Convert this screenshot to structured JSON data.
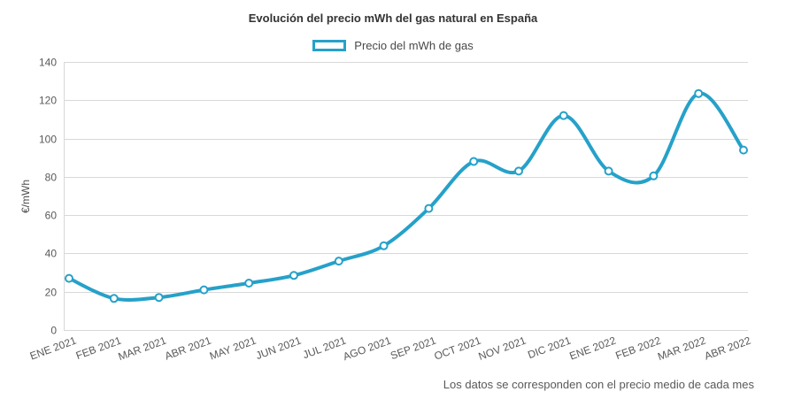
{
  "page": {
    "footer_note": "Los datos se corresponden con el precio medio de cada mes"
  },
  "legend": {
    "label": "Precio del mWh de gas"
  },
  "colors": {
    "accent": "#26a1c9",
    "grid": "#d8d8d8",
    "axis_text": "#595959",
    "title_text": "#333333",
    "marker_fill": "#ffffff"
  },
  "chart_data": {
    "type": "line",
    "title": "Evolución del precio mWh del gas natural en España",
    "xlabel": "",
    "ylabel": "€/mWh",
    "ylim": [
      0,
      140
    ],
    "ytick_step": 20,
    "grid": true,
    "legend_position": "top",
    "line_style": "smooth",
    "categories": [
      "ENE 2021",
      "FEB 2021",
      "MAR 2021",
      "ABR 2021",
      "MAY 2021",
      "JUN 2021",
      "JUL 2021",
      "AGO 2021",
      "SEP 2021",
      "OCT 2021",
      "NOV 2021",
      "DIC 2021",
      "ENE 2022",
      "FEB 2022",
      "MAR 2022",
      "ABR 2022"
    ],
    "series": [
      {
        "name": "Precio del mWh de gas",
        "values": [
          27,
          16.5,
          17,
          21,
          24.5,
          28.5,
          36,
          44,
          63.5,
          88,
          83,
          112,
          83,
          80.5,
          123.5,
          94
        ]
      }
    ]
  }
}
